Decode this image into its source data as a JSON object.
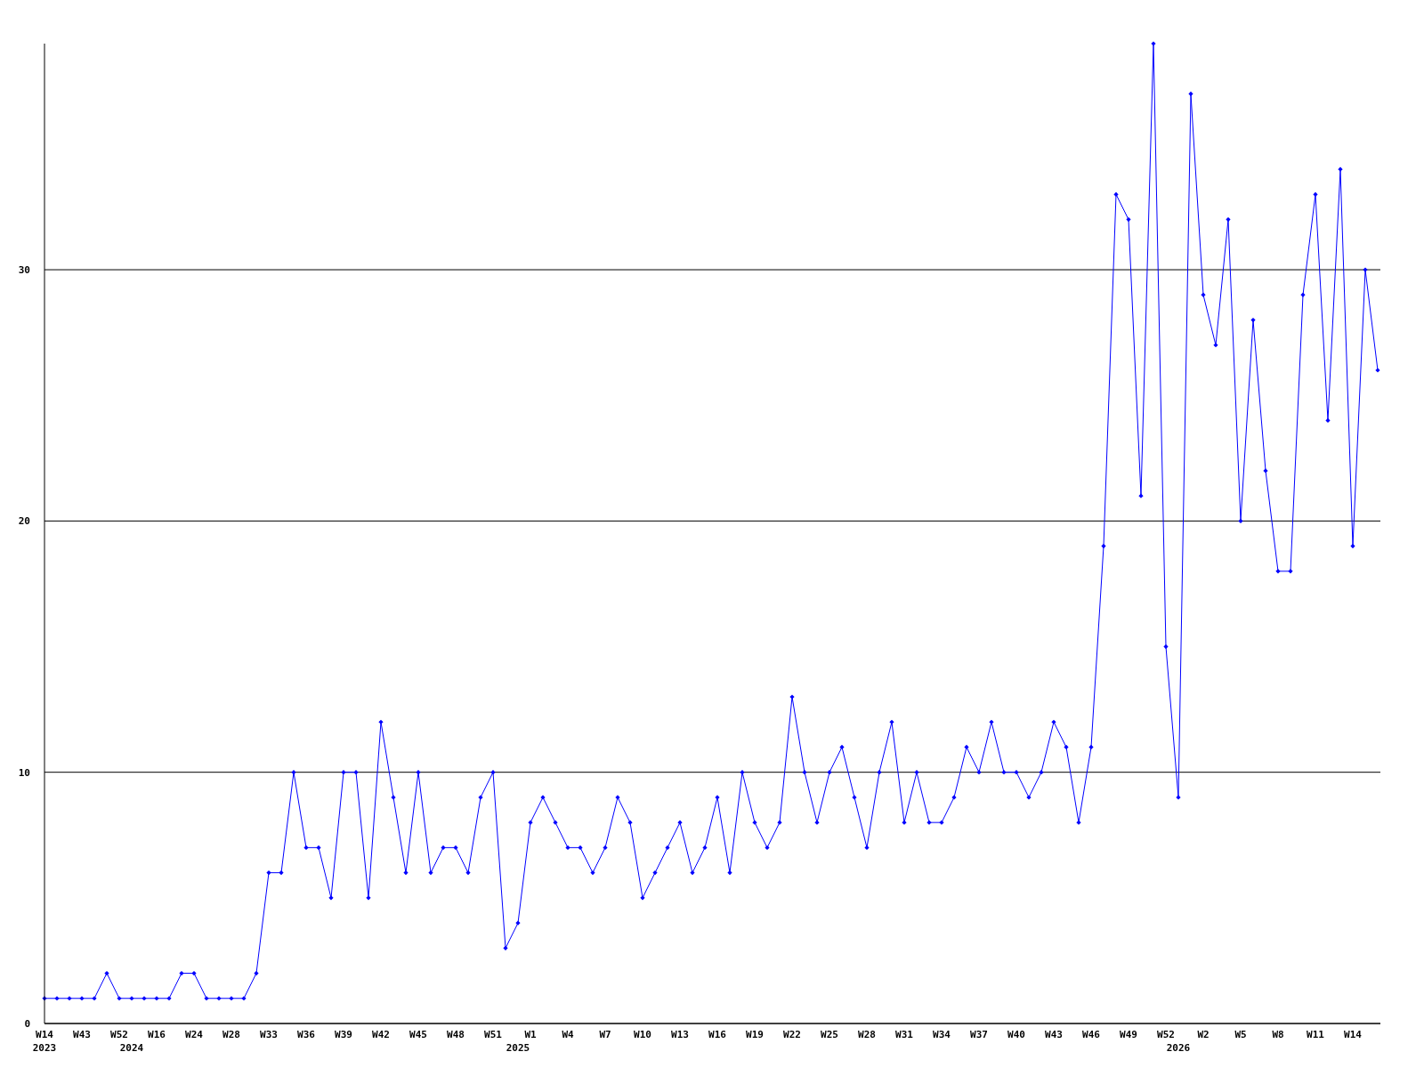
{
  "chart_data": {
    "type": "line",
    "categories": [
      "W14\n2023",
      null,
      null,
      "W43",
      null,
      null,
      "W52",
      "\n2024",
      null,
      "W16",
      null,
      null,
      "W24",
      null,
      null,
      "W28",
      null,
      null,
      "W33",
      null,
      null,
      "W36",
      null,
      null,
      "W39",
      null,
      null,
      "W42",
      null,
      null,
      "W45",
      null,
      null,
      "W48",
      null,
      null,
      "W51",
      null,
      "\n2025",
      "W1",
      null,
      null,
      "W4",
      null,
      null,
      "W7",
      null,
      null,
      "W10",
      null,
      null,
      "W13",
      null,
      null,
      "W16",
      null,
      null,
      "W19",
      null,
      null,
      "W22",
      null,
      null,
      "W25",
      null,
      null,
      "W28",
      null,
      null,
      "W31",
      null,
      null,
      "W34",
      null,
      null,
      "W37",
      null,
      null,
      "W40",
      null,
      null,
      "W43",
      null,
      null,
      "W46",
      null,
      null,
      "W49",
      null,
      null,
      "W52",
      "\n2026",
      null,
      "W2",
      null,
      null,
      "W5",
      null,
      null,
      "W8",
      null,
      null,
      "W11",
      null,
      null,
      "W14",
      null,
      null
    ],
    "series": [
      {
        "color": "#0000ff",
        "values": [
          1,
          1,
          1,
          1,
          1,
          2,
          1,
          1,
          1,
          1,
          1,
          2,
          2,
          1,
          1,
          1,
          1,
          2,
          6,
          6,
          10,
          7,
          7,
          5,
          10,
          10,
          5,
          12,
          9,
          6,
          10,
          6,
          7,
          7,
          6,
          9,
          10,
          3,
          4,
          8,
          9,
          8,
          7,
          7,
          6,
          7,
          9,
          8,
          5,
          6,
          7,
          8,
          6,
          7,
          9,
          6,
          10,
          8,
          7,
          8,
          13,
          10,
          8,
          10,
          11,
          9,
          7,
          10,
          12,
          8,
          10,
          8,
          8,
          9,
          11,
          10,
          12,
          10,
          10,
          9,
          10,
          12,
          11,
          8,
          11,
          19,
          33,
          32,
          21,
          39,
          15,
          9,
          37,
          29,
          27,
          32,
          20,
          28,
          22,
          18,
          18,
          29,
          33,
          24,
          34,
          19,
          30,
          26
        ]
      }
    ],
    "ylim": [
      0,
      39
    ],
    "yticks": [
      0,
      10,
      20,
      30
    ],
    "grid": "y",
    "marker": "diamond",
    "line_style": "solid"
  }
}
